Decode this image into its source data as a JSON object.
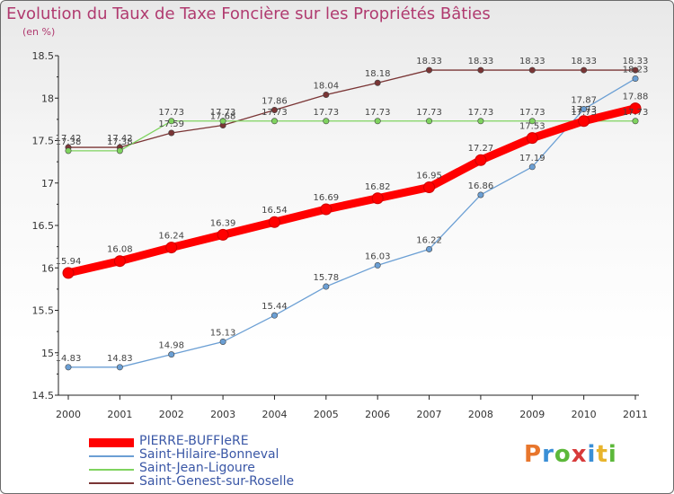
{
  "title": "Evolution du Taux de Taxe Foncière sur les Propriétés Bâties",
  "unit_label": "(en %)",
  "logo": {
    "text": "Proxiti"
  },
  "chart_data": {
    "type": "line",
    "title": "Evolution du Taux de Taxe Foncière sur les Propriétés Bâties",
    "ylabel": "(en %)",
    "xlabel": "",
    "x": [
      "2000",
      "2001",
      "2002",
      "2003",
      "2004",
      "2005",
      "2006",
      "2007",
      "2008",
      "2009",
      "2010",
      "2011"
    ],
    "yticks": [
      "14.5",
      "15",
      "15.5",
      "16",
      "16.5",
      "17",
      "17.5",
      "18",
      "18.5"
    ],
    "ylim": [
      14.5,
      18.5
    ],
    "grid": false,
    "legend_position": "bottom-left",
    "series": [
      {
        "name": "PIERRE-BUFFIeRE",
        "color": "#ff0000",
        "values": [
          15.94,
          16.08,
          16.24,
          16.39,
          16.54,
          16.69,
          16.82,
          16.95,
          17.27,
          17.53,
          17.73,
          17.88
        ],
        "labels": [
          "15.94",
          "16.08",
          "16.24",
          "16.39",
          "16.54",
          "16.69",
          "16.82",
          "16.95",
          "17.27",
          "17.53",
          "17.73",
          "17.88"
        ]
      },
      {
        "name": "Saint-Hilaire-Bonneval",
        "color": "#6b9fd4",
        "values": [
          14.83,
          14.83,
          14.98,
          15.13,
          15.44,
          15.78,
          16.03,
          16.22,
          16.86,
          17.19,
          17.87,
          18.23
        ],
        "labels": [
          "14.83",
          "14.83",
          "14.98",
          "15.13",
          "15.44",
          "15.78",
          "16.03",
          "16.22",
          "16.86",
          "17.19",
          "17.87",
          "18.23"
        ]
      },
      {
        "name": "Saint-Jean-Ligoure",
        "color": "#7fd35f",
        "values": [
          17.38,
          17.38,
          17.73,
          17.73,
          17.73,
          17.73,
          17.73,
          17.73,
          17.73,
          17.73,
          17.73,
          17.73
        ],
        "labels": [
          "17.38",
          "17.38",
          "17.73",
          "17.73",
          "17.73",
          "17.73",
          "17.73",
          "17.73",
          "17.73",
          "17.73",
          "17.73",
          "17.73"
        ]
      },
      {
        "name": "Saint-Genest-sur-Roselle",
        "color": "#7a3535",
        "values": [
          17.42,
          17.42,
          17.59,
          17.68,
          17.86,
          18.04,
          18.18,
          18.33,
          18.33,
          18.33,
          18.33,
          18.33
        ],
        "labels": [
          "17.42",
          "17.42",
          "17.59",
          "17.68",
          "17.86",
          "18.04",
          "18.18",
          "18.33",
          "18.33",
          "18.33",
          "18.33",
          "18.33"
        ]
      }
    ]
  }
}
